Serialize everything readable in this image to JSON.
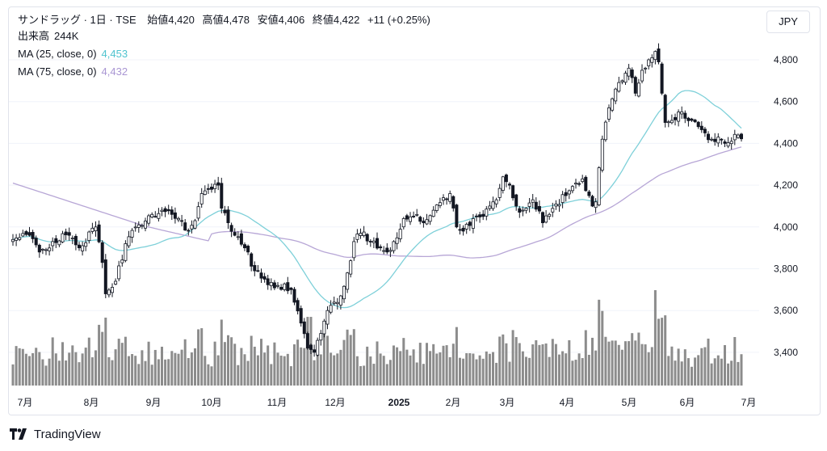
{
  "legend": {
    "title": "サンドラッグ · 1日 · TSE",
    "open_label": "始値",
    "open": "4,420",
    "high_label": "高値",
    "high": "4,478",
    "low_label": "安値",
    "low": "4,406",
    "close_label": "終値",
    "close": "4,422",
    "change": "+11 (+0.25%)",
    "volume_label": "出来高",
    "volume": "244K",
    "ma25_label": "MA (25, close, 0)",
    "ma25_value": "4,453",
    "ma75_label": "MA (75, close, 0)",
    "ma75_value": "4,432"
  },
  "currency": "JPY",
  "brand": "TradingView",
  "colors": {
    "up": "#ffffff",
    "down": "#131722",
    "wick": "#131722",
    "ma25": "#7ed0d9",
    "ma75": "#b7a6d6",
    "volume": "#8c8c8c"
  },
  "chart_data": {
    "type": "candlestick",
    "y_ticks": [
      "4,800",
      "4,600",
      "4,400",
      "4,200",
      "4,000",
      "3,800",
      "3,600",
      "3,400"
    ],
    "x_ticks": [
      {
        "label": "7月",
        "bold": false
      },
      {
        "label": "8月",
        "bold": false
      },
      {
        "label": "9月",
        "bold": false
      },
      {
        "label": "10月",
        "bold": false
      },
      {
        "label": "11月",
        "bold": false
      },
      {
        "label": "12月",
        "bold": false
      },
      {
        "label": "2025",
        "bold": true
      },
      {
        "label": "2月",
        "bold": false
      },
      {
        "label": "3月",
        "bold": false
      },
      {
        "label": "4月",
        "bold": false
      },
      {
        "label": "5月",
        "bold": false
      },
      {
        "label": "6月",
        "bold": false
      },
      {
        "label": "7月",
        "bold": false
      }
    ],
    "ylim": [
      3280,
      4900
    ],
    "close_anchors": [
      [
        0,
        3940
      ],
      [
        5,
        3960
      ],
      [
        8,
        3880
      ],
      [
        12,
        3930
      ],
      [
        17,
        3960
      ],
      [
        20,
        3900
      ],
      [
        25,
        4000
      ],
      [
        27,
        3830
      ],
      [
        28,
        3680
      ],
      [
        31,
        3740
      ],
      [
        34,
        3920
      ],
      [
        38,
        4010
      ],
      [
        42,
        4060
      ],
      [
        45,
        4080
      ],
      [
        48,
        4060
      ],
      [
        51,
        4030
      ],
      [
        53,
        3980
      ],
      [
        55,
        4030
      ],
      [
        57,
        4160
      ],
      [
        60,
        4180
      ],
      [
        62,
        4200
      ],
      [
        63,
        4090
      ],
      [
        65,
        4020
      ],
      [
        67,
        3960
      ],
      [
        70,
        3900
      ],
      [
        73,
        3790
      ],
      [
        76,
        3750
      ],
      [
        80,
        3720
      ],
      [
        84,
        3700
      ],
      [
        87,
        3540
      ],
      [
        89,
        3420
      ],
      [
        91,
        3400
      ],
      [
        93,
        3490
      ],
      [
        95,
        3600
      ],
      [
        97,
        3640
      ],
      [
        99,
        3670
      ],
      [
        101,
        3780
      ],
      [
        103,
        3930
      ],
      [
        105,
        3970
      ],
      [
        108,
        3930
      ],
      [
        111,
        3900
      ],
      [
        113,
        3880
      ],
      [
        115,
        3930
      ],
      [
        118,
        4040
      ],
      [
        121,
        4050
      ],
      [
        124,
        4020
      ],
      [
        127,
        4080
      ],
      [
        130,
        4140
      ],
      [
        132,
        4160
      ],
      [
        134,
        4000
      ],
      [
        136,
        3980
      ],
      [
        139,
        4040
      ],
      [
        142,
        4050
      ],
      [
        144,
        4100
      ],
      [
        146,
        4130
      ],
      [
        148,
        4240
      ],
      [
        150,
        4200
      ],
      [
        152,
        4100
      ],
      [
        154,
        4080
      ],
      [
        157,
        4130
      ],
      [
        160,
        4020
      ],
      [
        162,
        4060
      ],
      [
        164,
        4110
      ],
      [
        167,
        4150
      ],
      [
        170,
        4210
      ],
      [
        172,
        4230
      ],
      [
        174,
        4150
      ],
      [
        175,
        4100
      ],
      [
        176,
        4120
      ],
      [
        178,
        4420
      ],
      [
        180,
        4570
      ],
      [
        182,
        4660
      ],
      [
        184,
        4700
      ],
      [
        186,
        4760
      ],
      [
        188,
        4640
      ],
      [
        190,
        4750
      ],
      [
        192,
        4800
      ],
      [
        193,
        4810
      ],
      [
        194,
        4840
      ],
      [
        195,
        4790
      ],
      [
        196,
        4640
      ],
      [
        197,
        4500
      ],
      [
        199,
        4510
      ],
      [
        201,
        4550
      ],
      [
        203,
        4520
      ],
      [
        205,
        4510
      ],
      [
        207,
        4480
      ],
      [
        209,
        4450
      ],
      [
        211,
        4420
      ],
      [
        213,
        4430
      ],
      [
        215,
        4400
      ],
      [
        217,
        4410
      ],
      [
        219,
        4440
      ],
      [
        220,
        4422
      ]
    ],
    "volume_scale": [
      0,
      100
    ]
  }
}
